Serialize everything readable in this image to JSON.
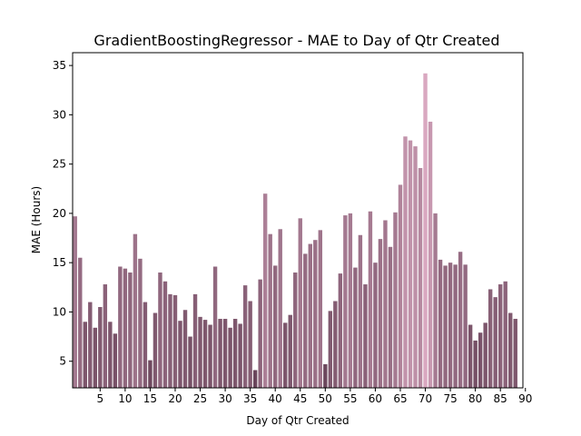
{
  "chart_data": {
    "type": "bar",
    "title": "GradientBoostingRegressor - MAE to Day of Qtr Created",
    "xlabel": "Day of Qtr Created",
    "ylabel": "MAE (Hours)",
    "xticks": [
      "5",
      "10",
      "15",
      "20",
      "25",
      "30",
      "35",
      "40",
      "45",
      "50",
      "55",
      "60",
      "65",
      "70",
      "75",
      "80",
      "85",
      "90"
    ],
    "yticks": [
      "5",
      "10",
      "15",
      "20",
      "25",
      "30",
      "35"
    ],
    "xlim": [
      0,
      90
    ],
    "ylim": [
      2.3,
      36.3
    ],
    "grid": false,
    "categories": [
      1,
      2,
      3,
      4,
      5,
      6,
      7,
      8,
      9,
      10,
      11,
      12,
      13,
      14,
      15,
      16,
      17,
      18,
      19,
      20,
      21,
      22,
      23,
      24,
      25,
      26,
      27,
      28,
      29,
      30,
      31,
      32,
      33,
      34,
      35,
      36,
      37,
      38,
      39,
      40,
      41,
      42,
      43,
      44,
      45,
      46,
      47,
      48,
      49,
      50,
      51,
      52,
      53,
      54,
      55,
      56,
      57,
      58,
      59,
      60,
      61,
      62,
      63,
      64,
      65,
      66,
      67,
      68,
      69,
      70,
      71,
      72,
      73,
      74,
      75,
      76,
      77,
      78,
      79,
      80,
      81,
      82,
      83,
      84,
      85,
      86,
      87,
      88,
      89,
      90
    ],
    "values": [
      19.7,
      15.5,
      9.0,
      11.0,
      8.4,
      10.5,
      12.8,
      9.0,
      7.8,
      14.6,
      14.4,
      14.0,
      17.9,
      15.4,
      11.0,
      5.1,
      9.9,
      14.0,
      13.1,
      11.8,
      11.7,
      9.1,
      10.2,
      7.5,
      11.8,
      9.5,
      9.2,
      8.7,
      14.6,
      9.3,
      9.3,
      8.4,
      9.3,
      8.8,
      12.7,
      11.1,
      4.1,
      13.3,
      22.0,
      17.9,
      14.7,
      18.4,
      8.9,
      9.7,
      14.0,
      19.5,
      15.9,
      16.9,
      17.3,
      18.3,
      4.7,
      10.1,
      11.1,
      13.9,
      19.8,
      20.0,
      14.5,
      17.8,
      12.8,
      20.2,
      15.0,
      17.4,
      19.3,
      16.6,
      20.1,
      22.9,
      27.8,
      27.4,
      26.8,
      24.6,
      34.2,
      29.3,
      20.0,
      15.3,
      14.7,
      15.0,
      14.8,
      16.1,
      14.8,
      8.7,
      7.1,
      7.9,
      8.9,
      12.3,
      11.5,
      12.8,
      13.1,
      9.9,
      9.3,
      null
    ]
  }
}
